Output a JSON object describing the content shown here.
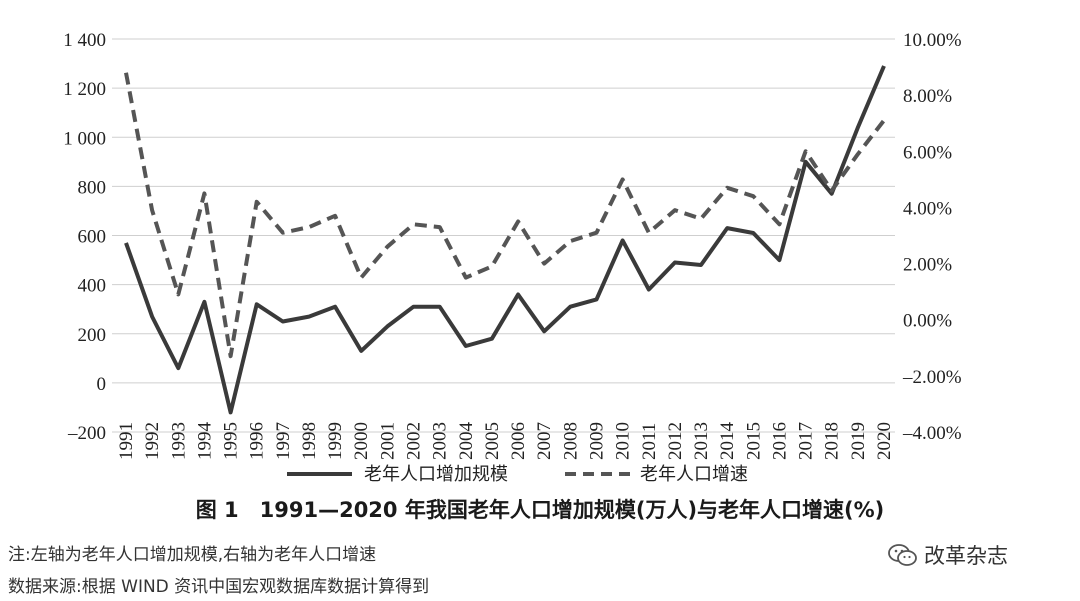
{
  "chart_data": {
    "type": "line",
    "categories": [
      "1991",
      "1992",
      "1993",
      "1994",
      "1995",
      "1996",
      "1997",
      "1998",
      "1999",
      "2000",
      "2001",
      "2002",
      "2003",
      "2004",
      "2005",
      "2006",
      "2007",
      "2008",
      "2009",
      "2010",
      "2011",
      "2012",
      "2013",
      "2014",
      "2015",
      "2016",
      "2017",
      "2018",
      "2019",
      "2020"
    ],
    "left_axis": {
      "ylim": [
        -200,
        1400
      ],
      "ticks": [
        "1 400",
        "1 200",
        "1 000",
        "800",
        "600",
        "400",
        "200",
        "0",
        "–200"
      ],
      "tick_values": [
        1400,
        1200,
        1000,
        800,
        600,
        400,
        200,
        0,
        -200
      ]
    },
    "right_axis": {
      "ylim": [
        -4,
        10
      ],
      "ticks": [
        "10.00%",
        "8.00%",
        "6.00%",
        "4.00%",
        "2.00%",
        "0.00%",
        "–2.00%",
        "–4.00%"
      ],
      "tick_values": [
        10,
        8,
        6,
        4,
        2,
        0,
        -2,
        -4
      ]
    },
    "grid": true,
    "legend_position": "bottom",
    "series": [
      {
        "name": "老年人口增加规模",
        "axis": "left",
        "style": "solid",
        "color": "#3a3a3a",
        "values": [
          570,
          270,
          60,
          330,
          -120,
          320,
          250,
          270,
          310,
          130,
          230,
          310,
          310,
          150,
          180,
          360,
          210,
          310,
          340,
          580,
          380,
          490,
          480,
          630,
          610,
          500,
          900,
          770,
          1040,
          1290
        ]
      },
      {
        "name": "老年人口增速",
        "axis": "right",
        "style": "dashed",
        "color": "#555555",
        "values": [
          8.8,
          3.9,
          0.9,
          4.5,
          -1.3,
          4.2,
          3.1,
          3.3,
          3.7,
          1.5,
          2.6,
          3.4,
          3.3,
          1.5,
          1.9,
          3.5,
          2.0,
          2.8,
          3.1,
          5.0,
          3.1,
          3.9,
          3.6,
          4.7,
          4.4,
          3.4,
          6.0,
          4.6,
          5.9,
          7.1
        ]
      }
    ]
  },
  "caption": "图 1　1991—2020 年我国老年人口增加规模(万人)与老年人口增速(%)",
  "note1": "注:左轴为老年人口增加规模,右轴为老年人口增速",
  "note2": "数据来源:根据 WIND 资讯中国宏观数据库数据计算得到",
  "watermark": "改革杂志",
  "watermark_icon": "wechat-icon"
}
